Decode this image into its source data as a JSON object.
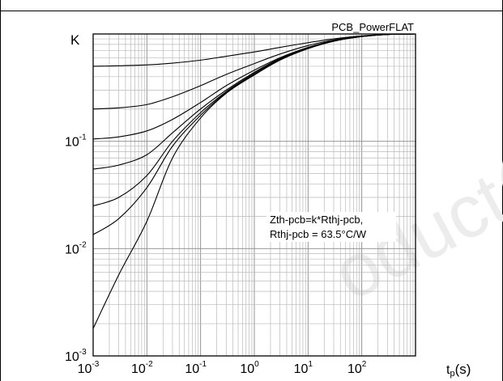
{
  "chart_data": {
    "type": "line",
    "title": "PCB_PowerFLAT",
    "ylabel": "K",
    "xlabel": "tp(s)",
    "xscale": "log",
    "yscale": "log",
    "xlim": [
      0.001,
      1000
    ],
    "ylim": [
      0.001,
      1
    ],
    "grid": true,
    "x_ticks": [
      {
        "base": "10",
        "exp": "-3",
        "value": 0.001
      },
      {
        "base": "10",
        "exp": "-2",
        "value": 0.01
      },
      {
        "base": "10",
        "exp": "-1",
        "value": 0.1
      },
      {
        "base": "10",
        "exp": "0",
        "value": 1
      },
      {
        "base": "10",
        "exp": "1",
        "value": 10
      },
      {
        "base": "10",
        "exp": "2",
        "value": 100
      }
    ],
    "y_ticks": [
      {
        "base": "10",
        "exp": "-3",
        "value": 0.001
      },
      {
        "base": "10",
        "exp": "-2",
        "value": 0.01
      },
      {
        "base": "10",
        "exp": "-1",
        "value": 0.1
      }
    ],
    "annotation": [
      "Zth-pcb=k*Rthj-pcb,",
      "Rthj-pcb = 63.5°C/W"
    ],
    "x": [
      0.001,
      0.003,
      0.01,
      0.03,
      0.1,
      0.3,
      1,
      3,
      10,
      30,
      100,
      300,
      1000
    ],
    "series": [
      {
        "values": [
          0.5,
          0.505,
          0.515,
          0.535,
          0.57,
          0.62,
          0.68,
          0.75,
          0.83,
          0.9,
          0.96,
          0.99,
          1.0
        ]
      },
      {
        "values": [
          0.2,
          0.205,
          0.22,
          0.26,
          0.33,
          0.42,
          0.53,
          0.65,
          0.78,
          0.88,
          0.95,
          0.99,
          1.0
        ]
      },
      {
        "values": [
          0.105,
          0.11,
          0.125,
          0.16,
          0.23,
          0.33,
          0.46,
          0.6,
          0.75,
          0.87,
          0.95,
          0.99,
          1.0
        ]
      },
      {
        "values": [
          0.055,
          0.06,
          0.075,
          0.12,
          0.2,
          0.3,
          0.44,
          0.59,
          0.745,
          0.865,
          0.95,
          0.99,
          1.0
        ]
      },
      {
        "values": [
          0.025,
          0.03,
          0.048,
          0.1,
          0.185,
          0.29,
          0.43,
          0.58,
          0.74,
          0.86,
          0.945,
          0.99,
          1.0
        ]
      },
      {
        "values": [
          0.0135,
          0.019,
          0.037,
          0.09,
          0.175,
          0.285,
          0.42,
          0.575,
          0.735,
          0.86,
          0.945,
          0.99,
          1.0
        ]
      },
      {
        "values": [
          0.0018,
          0.0057,
          0.018,
          0.07,
          0.165,
          0.28,
          0.415,
          0.57,
          0.73,
          0.855,
          0.945,
          0.99,
          1.0
        ]
      }
    ]
  }
}
